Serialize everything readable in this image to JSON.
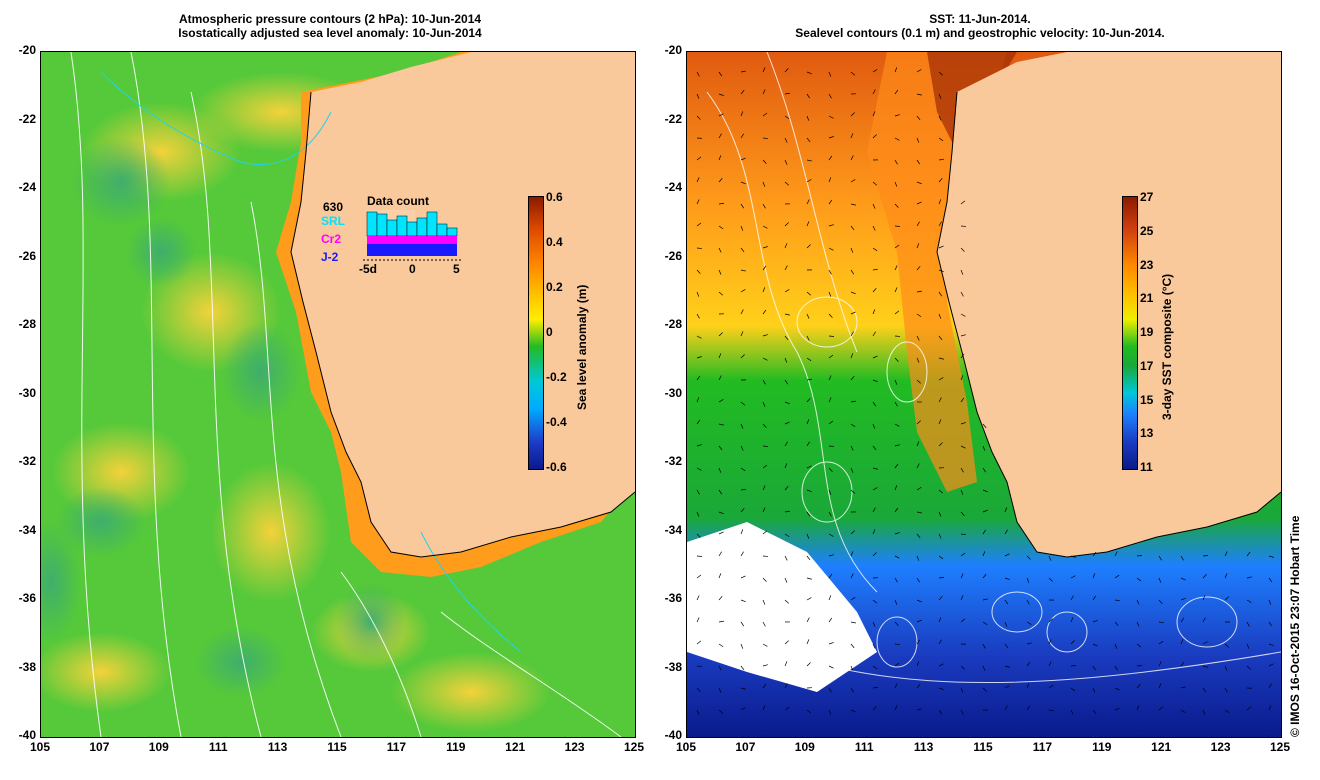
{
  "left": {
    "title_line1": "Atmospheric pressure contours (2 hPa): 10-Jun-2014",
    "title_line2": "Isostatically adjusted sea level anomaly: 10-Jun-2014",
    "colorbar": {
      "label": "Sea level anomaly (m)",
      "ticks": [
        "0.6",
        "0.4",
        "0.2",
        "0",
        "-0.2",
        "-0.4",
        "-0.6"
      ]
    },
    "inset": {
      "title": "Data count",
      "count": "630",
      "sat1": "SRL",
      "sat2": "Cr2",
      "sat3": "J-2",
      "axis_left": "-5d",
      "axis_mid": "0",
      "axis_right": "5",
      "sat1_color": "#00e5ff",
      "sat2_color": "#ff00ff",
      "sat3_color": "#1a1aff"
    }
  },
  "right": {
    "title_line1": "SST: 11-Jun-2014.",
    "title_line2": "Sealevel contours (0.1 m) and geostrophic velocity: 10-Jun-2014.",
    "colorbar": {
      "label": "3-day SST composite (°C)",
      "ticks": [
        "27",
        "25",
        "23",
        "21",
        "19",
        "17",
        "15",
        "13",
        "11"
      ]
    }
  },
  "axes": {
    "y_ticks": [
      "-20",
      "-22",
      "-24",
      "-26",
      "-28",
      "-30",
      "-32",
      "-34",
      "-36",
      "-38",
      "-40"
    ],
    "x_ticks": [
      "105",
      "107",
      "109",
      "111",
      "113",
      "115",
      "117",
      "119",
      "121",
      "123",
      "125"
    ]
  },
  "credit": "© IMOS 16-Oct-2015 23:07 Hobart Time",
  "colors": {
    "land": "#f9c89b",
    "sla_scale": [
      "#0a1a8c",
      "#00aaff",
      "#22bb22",
      "#ffee00",
      "#ff8800",
      "#8b1a00"
    ],
    "sst_scale": [
      "#0a1a8c",
      "#1e7fff",
      "#22bb22",
      "#eeee00",
      "#ff8800",
      "#8b1a00"
    ]
  }
}
